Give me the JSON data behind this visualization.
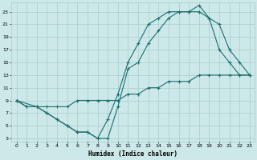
{
  "xlabel": "Humidex (Indice chaleur)",
  "background_color": "#cce8e8",
  "grid_color": "#aacccc",
  "line_color": "#1a7070",
  "xlim": [
    -0.5,
    23.5
  ],
  "ylim": [
    2.5,
    24.5
  ],
  "xticks": [
    0,
    1,
    2,
    3,
    4,
    5,
    6,
    7,
    8,
    9,
    10,
    11,
    12,
    13,
    14,
    15,
    16,
    17,
    18,
    19,
    20,
    21,
    22,
    23
  ],
  "yticks": [
    3,
    5,
    7,
    9,
    11,
    13,
    15,
    17,
    19,
    21,
    23
  ],
  "line1_x": [
    0,
    1,
    2,
    3,
    4,
    5,
    6,
    7,
    8,
    9,
    10,
    11,
    12,
    13,
    14,
    15,
    16,
    17,
    18,
    19,
    20,
    21,
    22,
    23
  ],
  "line1_y": [
    9,
    8,
    8,
    8,
    8,
    8,
    9,
    9,
    9,
    9,
    9,
    10,
    10,
    11,
    11,
    12,
    12,
    12,
    13,
    13,
    13,
    13,
    13,
    13
  ],
  "line2_x": [
    0,
    1,
    2,
    3,
    4,
    5,
    6,
    7,
    8,
    9,
    10,
    11,
    12,
    13,
    14,
    15,
    16,
    17,
    18,
    19,
    20,
    21,
    22,
    23
  ],
  "line2_y": [
    9,
    8,
    8,
    7,
    6,
    5,
    4,
    4,
    3,
    6,
    10,
    15,
    18,
    21,
    22,
    23,
    23,
    23,
    23,
    22,
    17,
    15,
    13,
    13
  ],
  "line3_x": [
    0,
    2,
    3,
    4,
    5,
    6,
    7,
    8,
    9,
    10,
    11,
    12,
    13,
    14,
    15,
    16,
    17,
    18,
    19,
    20,
    21,
    22,
    23
  ],
  "line3_y": [
    9,
    8,
    7,
    6,
    5,
    4,
    4,
    3,
    3,
    8,
    14,
    15,
    18,
    20,
    22,
    23,
    23,
    24,
    22,
    21,
    17,
    15,
    13
  ]
}
